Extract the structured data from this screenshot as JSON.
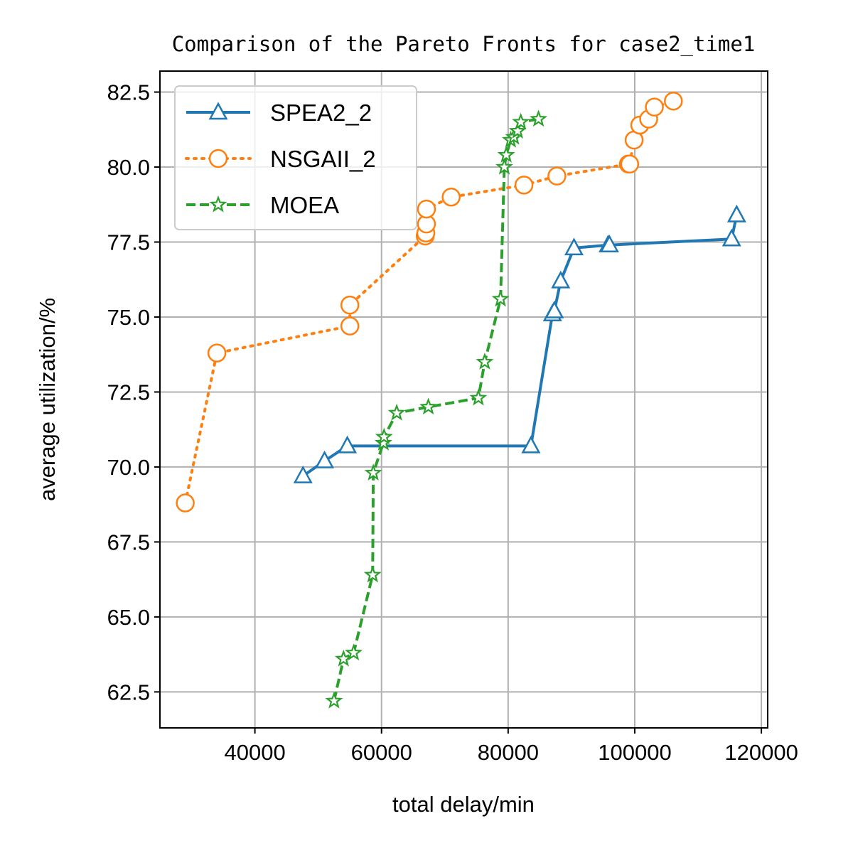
{
  "chart_data": {
    "type": "line",
    "title": "Comparison of the Pareto Fronts for case2_time1",
    "xlabel": "total delay/min",
    "ylabel": "average utilization/%",
    "xlim": [
      25000,
      121000
    ],
    "ylim": [
      61.3,
      83.2
    ],
    "xticks": [
      40000,
      60000,
      80000,
      100000,
      120000
    ],
    "yticks": [
      62.5,
      65.0,
      67.5,
      70.0,
      72.5,
      75.0,
      77.5,
      80.0,
      82.5
    ],
    "grid": true,
    "legend_position": "top-left",
    "series": [
      {
        "name": "SPEA2_2",
        "color": "#1f77b4",
        "line_style": "solid",
        "marker": "triangle",
        "x": [
          47600,
          51000,
          54600,
          83600,
          87000,
          87300,
          88300,
          90400,
          95800,
          96000,
          115300,
          116100
        ],
        "y": [
          69.7,
          70.2,
          70.7,
          70.7,
          75.1,
          75.2,
          76.2,
          77.3,
          77.4,
          77.4,
          77.6,
          78.4
        ]
      },
      {
        "name": "NSGAII_2",
        "color": "#ff7f0e",
        "line_style": "dotted",
        "marker": "circle",
        "x": [
          29000,
          34000,
          55000,
          55000,
          66900,
          67000,
          67100,
          67100,
          71000,
          82500,
          87700,
          99000,
          99200,
          99900,
          100800,
          102200,
          103100,
          106100
        ],
        "y": [
          68.8,
          73.8,
          74.7,
          75.4,
          77.7,
          77.8,
          78.1,
          78.6,
          79.0,
          79.4,
          79.7,
          80.1,
          80.1,
          80.9,
          81.4,
          81.6,
          82.0,
          82.2
        ]
      },
      {
        "name": "MOEA",
        "color": "#2ca02c",
        "line_style": "dashed",
        "marker": "star",
        "x": [
          52500,
          54000,
          55600,
          58600,
          58700,
          60300,
          60400,
          62400,
          67400,
          75300,
          76300,
          78800,
          79400,
          79700,
          80400,
          80900,
          81500,
          82000,
          84800
        ],
        "y": [
          62.2,
          63.6,
          63.8,
          66.4,
          69.8,
          70.8,
          71.0,
          71.8,
          72.0,
          72.3,
          73.5,
          75.6,
          80.0,
          80.4,
          80.9,
          81.0,
          81.2,
          81.5,
          81.6
        ]
      }
    ]
  }
}
